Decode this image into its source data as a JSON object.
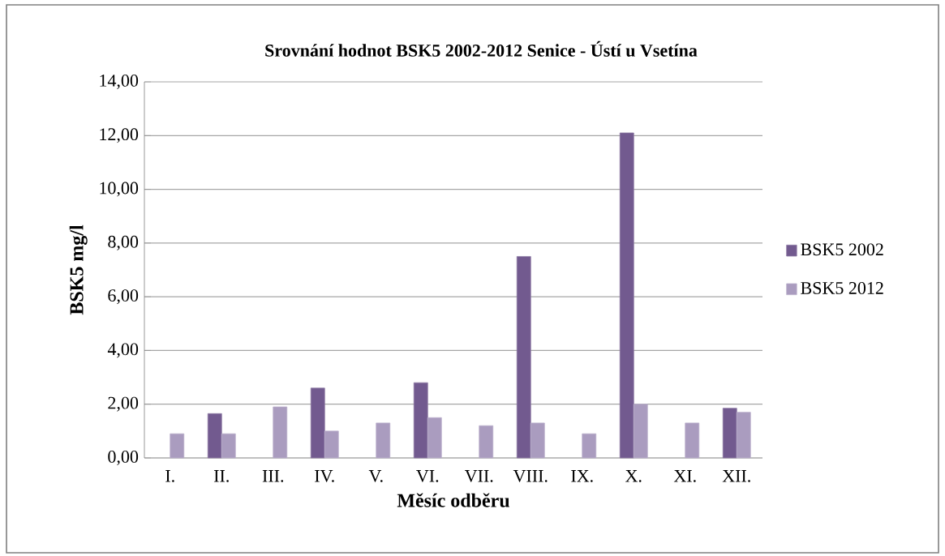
{
  "chart_data": {
    "type": "bar",
    "title": "Srovnání hodnot BSK5 2002-2012 Senice - Ústí u Vsetína",
    "xlabel": "Měsíc odběru",
    "ylabel": "BSK5 mg/l",
    "categories": [
      "I.",
      "II.",
      "III.",
      "IV.",
      "V.",
      "VI.",
      "VII.",
      "VIII.",
      "IX.",
      "X.",
      "XI.",
      "XII."
    ],
    "series": [
      {
        "name": "BSK5 2002",
        "color": "#725a8f",
        "values": [
          null,
          1.65,
          null,
          2.6,
          null,
          2.8,
          null,
          7.5,
          null,
          12.1,
          null,
          1.85
        ]
      },
      {
        "name": "BSK5 2012",
        "color": "#aa9cbf",
        "values": [
          0.9,
          0.9,
          1.9,
          1.0,
          1.3,
          1.5,
          1.2,
          1.3,
          0.9,
          2.0,
          1.3,
          1.7
        ]
      }
    ],
    "ylim": [
      0,
      14
    ],
    "yticks": [
      {
        "value": 0,
        "label": "0,00"
      },
      {
        "value": 2,
        "label": "2,00"
      },
      {
        "value": 4,
        "label": "4,00"
      },
      {
        "value": 6,
        "label": "6,00"
      },
      {
        "value": 8,
        "label": "8,00"
      },
      {
        "value": 10,
        "label": "10,00"
      },
      {
        "value": 12,
        "label": "12,00"
      },
      {
        "value": 14,
        "label": "14,00"
      }
    ],
    "grid": "y",
    "legend": "right"
  }
}
